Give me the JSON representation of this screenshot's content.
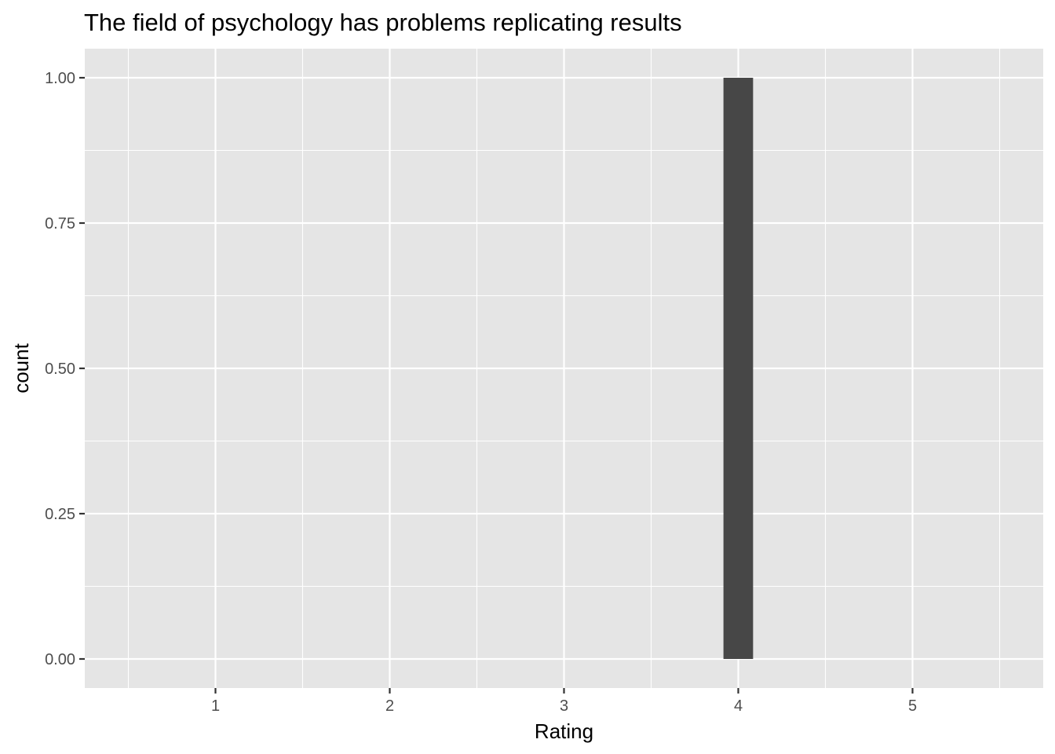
{
  "chart_data": {
    "type": "bar",
    "title": "The field of psychology has problems replicating results",
    "xlabel": "Rating",
    "ylabel": "count",
    "x": [
      4
    ],
    "values": [
      1
    ],
    "bar_width": 0.17,
    "xlim": [
      0.25,
      5.75
    ],
    "ylim": [
      -0.05,
      1.05
    ],
    "x_ticks": [
      1,
      2,
      3,
      4,
      5
    ],
    "x_tick_labels": [
      "1",
      "2",
      "3",
      "4",
      "5"
    ],
    "y_ticks": [
      0,
      0.25,
      0.5,
      0.75,
      1
    ],
    "y_tick_labels": [
      "0.00",
      "0.25",
      "0.50",
      "0.75",
      "1.00"
    ],
    "grid": true,
    "colors": {
      "bar": "#474747",
      "panel": "#E5E5E5",
      "grid": "#FFFFFF",
      "tick_text": "#4D4D4D",
      "tick_mark": "#333333"
    }
  }
}
